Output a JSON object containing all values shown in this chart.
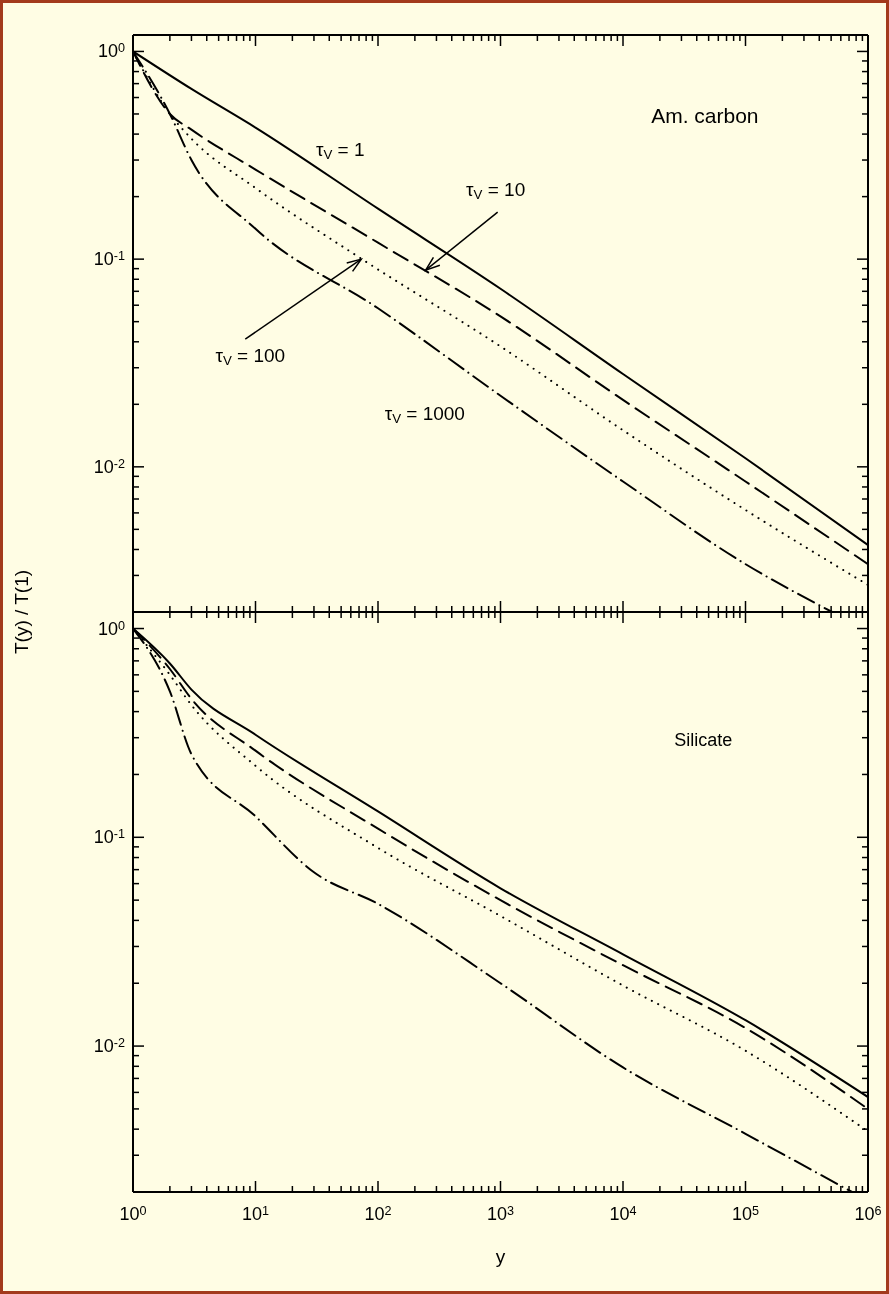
{
  "chart_data": [
    {
      "type": "line",
      "ylabel": "T(y) / T(1)",
      "log": "xy",
      "marker": "none",
      "tick_labels": "y",
      "xlim": [
        1,
        1000000
      ],
      "ylim": [
        0.002,
        1.2
      ],
      "xticks": [
        {
          "value": 1,
          "label": null
        },
        {
          "value": 2,
          "label": null
        },
        {
          "value": 3,
          "label": null
        },
        {
          "value": 4,
          "label": null
        },
        {
          "value": 5,
          "label": null
        },
        {
          "value": 6,
          "label": null
        },
        {
          "value": 7,
          "label": null
        },
        {
          "value": 8,
          "label": null
        },
        {
          "value": 9,
          "label": null
        },
        {
          "value": 10,
          "label": null
        },
        {
          "value": 20,
          "label": null
        },
        {
          "value": 30,
          "label": null
        },
        {
          "value": 40,
          "label": null
        },
        {
          "value": 50,
          "label": null
        },
        {
          "value": 60,
          "label": null
        },
        {
          "value": 70,
          "label": null
        },
        {
          "value": 80,
          "label": null
        },
        {
          "value": 90,
          "label": null
        },
        {
          "value": 100,
          "label": null
        },
        {
          "value": 200,
          "label": null
        },
        {
          "value": 300,
          "label": null
        },
        {
          "value": 400,
          "label": null
        },
        {
          "value": 500,
          "label": null
        },
        {
          "value": 600,
          "label": null
        },
        {
          "value": 700,
          "label": null
        },
        {
          "value": 800,
          "label": null
        },
        {
          "value": 900,
          "label": null
        },
        {
          "value": 1000,
          "label": null
        },
        {
          "value": 2000,
          "label": null
        },
        {
          "value": 3000,
          "label": null
        },
        {
          "value": 4000,
          "label": null
        },
        {
          "value": 5000,
          "label": null
        },
        {
          "value": 6000,
          "label": null
        },
        {
          "value": 7000,
          "label": null
        },
        {
          "value": 8000,
          "label": null
        },
        {
          "value": 9000,
          "label": null
        },
        {
          "value": 10000,
          "label": null
        },
        {
          "value": 20000,
          "label": null
        },
        {
          "value": 30000,
          "label": null
        },
        {
          "value": 40000,
          "label": null
        },
        {
          "value": 50000,
          "label": null
        },
        {
          "value": 60000,
          "label": null
        },
        {
          "value": 70000,
          "label": null
        },
        {
          "value": 80000,
          "label": null
        },
        {
          "value": 90000,
          "label": null
        },
        {
          "value": 100000,
          "label": null
        },
        {
          "value": 200000,
          "label": null
        },
        {
          "value": 300000,
          "label": null
        },
        {
          "value": 400000,
          "label": null
        },
        {
          "value": 500000,
          "label": null
        },
        {
          "value": 600000,
          "label": null
        },
        {
          "value": 700000,
          "label": null
        },
        {
          "value": 800000,
          "label": null
        },
        {
          "value": 900000,
          "label": null
        },
        {
          "value": 1000000,
          "label": null
        }
      ],
      "yticks": [
        {
          "value": 0.002,
          "label": null
        },
        {
          "value": 0.003,
          "label": null
        },
        {
          "value": 0.004,
          "label": null
        },
        {
          "value": 0.005,
          "label": null
        },
        {
          "value": 0.006,
          "label": null
        },
        {
          "value": 0.007,
          "label": null
        },
        {
          "value": 0.008,
          "label": null
        },
        {
          "value": 0.009,
          "label": null
        },
        {
          "value": 0.01,
          "label": "10$^{-2}$"
        },
        {
          "value": 0.02,
          "label": null
        },
        {
          "value": 0.03,
          "label": null
        },
        {
          "value": 0.04,
          "label": null
        },
        {
          "value": 0.05,
          "label": null
        },
        {
          "value": 0.06,
          "label": null
        },
        {
          "value": 0.07,
          "label": null
        },
        {
          "value": 0.08,
          "label": null
        },
        {
          "value": 0.09,
          "label": null
        },
        {
          "value": 0.1,
          "label": "10$^{-1}$"
        },
        {
          "value": 0.2,
          "label": null
        },
        {
          "value": 0.3,
          "label": null
        },
        {
          "value": 0.4,
          "label": null
        },
        {
          "value": 0.5,
          "label": null
        },
        {
          "value": 0.6,
          "label": null
        },
        {
          "value": 0.7,
          "label": null
        },
        {
          "value": 0.8,
          "label": null
        },
        {
          "value": 0.9,
          "label": null
        },
        {
          "value": 1,
          "label": "10$^{0}$"
        }
      ],
      "series": [
        {
          "color": "#000000",
          "line_style": "solid",
          "x": [
            1,
            3,
            10,
            100,
            1000,
            10000,
            100000,
            1000000
          ],
          "values": [
            1,
            0.66,
            0.43,
            0.175,
            0.072,
            0.028,
            0.011,
            0.0042
          ]
        },
        {
          "color": "#000000",
          "line_style": "dashed",
          "x": [
            1,
            2,
            3,
            10,
            100,
            1000,
            10000,
            100000,
            1000000
          ],
          "values": [
            1,
            0.5,
            0.42,
            0.27,
            0.12,
            0.053,
            0.021,
            0.0085,
            0.0034
          ]
        },
        {
          "color": "#000000",
          "line_style": "dotted",
          "x": [
            1,
            2,
            3,
            10,
            74,
            1000,
            10000,
            100000,
            1000000
          ],
          "values": [
            1,
            0.5,
            0.38,
            0.22,
            0.1,
            0.038,
            0.015,
            0.0062,
            0.0027
          ]
        },
        {
          "color": "#000000",
          "line_style": "dashdot",
          "x": [
            1,
            2,
            3,
            10,
            100,
            1000,
            10000,
            100000,
            510000
          ],
          "values": [
            1,
            0.5,
            0.3,
            0.14,
            0.058,
            0.022,
            0.0085,
            0.0034,
            0.002
          ]
        }
      ],
      "annotations": [
        "Am. carbon",
        "τ$_{V}$ = 1",
        {
          "text": "τ$_{V}$ = 10",
          "x": 245,
          "y": 0.0885
        },
        {
          "text": "τ$_{V}$ = 100",
          "x": 73,
          "y": 0.1
        },
        "τ$_{V}$ = 1000"
      ]
    },
    {
      "type": "line",
      "xlabel": "y",
      "log": "xy",
      "marker": "none",
      "xlim": [
        1,
        1000000
      ],
      "ylim": [
        0.002,
        1.2
      ],
      "xticks": [
        {
          "value": 1,
          "label": "10$^{0}$"
        },
        {
          "value": 2,
          "label": null
        },
        {
          "value": 3,
          "label": null
        },
        {
          "value": 4,
          "label": null
        },
        {
          "value": 5,
          "label": null
        },
        {
          "value": 6,
          "label": null
        },
        {
          "value": 7,
          "label": null
        },
        {
          "value": 8,
          "label": null
        },
        {
          "value": 9,
          "label": null
        },
        {
          "value": 10,
          "label": "10$^{1}$"
        },
        {
          "value": 20,
          "label": null
        },
        {
          "value": 30,
          "label": null
        },
        {
          "value": 40,
          "label": null
        },
        {
          "value": 50,
          "label": null
        },
        {
          "value": 60,
          "label": null
        },
        {
          "value": 70,
          "label": null
        },
        {
          "value": 80,
          "label": null
        },
        {
          "value": 90,
          "label": null
        },
        {
          "value": 100,
          "label": "10$^{2}$"
        },
        {
          "value": 200,
          "label": null
        },
        {
          "value": 300,
          "label": null
        },
        {
          "value": 400,
          "label": null
        },
        {
          "value": 500,
          "label": null
        },
        {
          "value": 600,
          "label": null
        },
        {
          "value": 700,
          "label": null
        },
        {
          "value": 800,
          "label": null
        },
        {
          "value": 900,
          "label": null
        },
        {
          "value": 1000,
          "label": "10$^{3}$"
        },
        {
          "value": 2000,
          "label": null
        },
        {
          "value": 3000,
          "label": null
        },
        {
          "value": 4000,
          "label": null
        },
        {
          "value": 5000,
          "label": null
        },
        {
          "value": 6000,
          "label": null
        },
        {
          "value": 7000,
          "label": null
        },
        {
          "value": 8000,
          "label": null
        },
        {
          "value": 9000,
          "label": null
        },
        {
          "value": 10000,
          "label": "10$^{4}$"
        },
        {
          "value": 20000,
          "label": null
        },
        {
          "value": 30000,
          "label": null
        },
        {
          "value": 40000,
          "label": null
        },
        {
          "value": 50000,
          "label": null
        },
        {
          "value": 60000,
          "label": null
        },
        {
          "value": 70000,
          "label": null
        },
        {
          "value": 80000,
          "label": null
        },
        {
          "value": 90000,
          "label": null
        },
        {
          "value": 100000,
          "label": "10$^{5}$"
        },
        {
          "value": 200000,
          "label": null
        },
        {
          "value": 300000,
          "label": null
        },
        {
          "value": 400000,
          "label": null
        },
        {
          "value": 500000,
          "label": null
        },
        {
          "value": 600000,
          "label": null
        },
        {
          "value": 700000,
          "label": null
        },
        {
          "value": 800000,
          "label": null
        },
        {
          "value": 900000,
          "label": null
        },
        {
          "value": 1000000,
          "label": "10$^{6}$"
        }
      ],
      "yticks": [
        {
          "value": 0.002,
          "label": null
        },
        {
          "value": 0.003,
          "label": null
        },
        {
          "value": 0.004,
          "label": null
        },
        {
          "value": 0.005,
          "label": null
        },
        {
          "value": 0.006,
          "label": null
        },
        {
          "value": 0.007,
          "label": null
        },
        {
          "value": 0.008,
          "label": null
        },
        {
          "value": 0.009,
          "label": null
        },
        {
          "value": 0.01,
          "label": "10$^{-2}$"
        },
        {
          "value": 0.02,
          "label": null
        },
        {
          "value": 0.03,
          "label": null
        },
        {
          "value": 0.04,
          "label": null
        },
        {
          "value": 0.05,
          "label": null
        },
        {
          "value": 0.06,
          "label": null
        },
        {
          "value": 0.07,
          "label": null
        },
        {
          "value": 0.08,
          "label": null
        },
        {
          "value": 0.09,
          "label": null
        },
        {
          "value": 0.1,
          "label": "10$^{-1}$"
        },
        {
          "value": 0.2,
          "label": null
        },
        {
          "value": 0.3,
          "label": null
        },
        {
          "value": 0.4,
          "label": null
        },
        {
          "value": 0.5,
          "label": null
        },
        {
          "value": 0.6,
          "label": null
        },
        {
          "value": 0.7,
          "label": null
        },
        {
          "value": 0.8,
          "label": null
        },
        {
          "value": 0.9,
          "label": null
        },
        {
          "value": 1,
          "label": "10$^{0}$"
        }
      ],
      "series": [
        {
          "color": "#000000",
          "line_style": "solid",
          "x": [
            1,
            2,
            3,
            10,
            100,
            1000,
            10000,
            100000,
            1000000
          ],
          "values": [
            1,
            0.68,
            0.51,
            0.31,
            0.133,
            0.057,
            0.0275,
            0.0133,
            0.0057
          ]
        },
        {
          "color": "#000000",
          "line_style": "dashed",
          "x": [
            1,
            2,
            3,
            10,
            100,
            1000,
            10000,
            100000,
            1000000
          ],
          "values": [
            1,
            0.64,
            0.46,
            0.26,
            0.11,
            0.05,
            0.0244,
            0.0122,
            0.005
          ]
        },
        {
          "color": "#000000",
          "line_style": "dotted",
          "x": [
            1,
            2,
            3,
            10,
            100,
            1000,
            10000,
            100000,
            1000000
          ],
          "values": [
            1,
            0.6,
            0.43,
            0.22,
            0.089,
            0.042,
            0.0195,
            0.0095,
            0.0039
          ]
        },
        {
          "color": "#000000",
          "line_style": "dashdot",
          "x": [
            1,
            2,
            3,
            10,
            30,
            100,
            1000,
            10000,
            100000,
            740000
          ],
          "values": [
            1,
            0.5,
            0.25,
            0.126,
            0.068,
            0.048,
            0.02,
            0.0079,
            0.0038,
            0.002
          ]
        }
      ],
      "annotations": [
        "Silicate"
      ]
    }
  ]
}
